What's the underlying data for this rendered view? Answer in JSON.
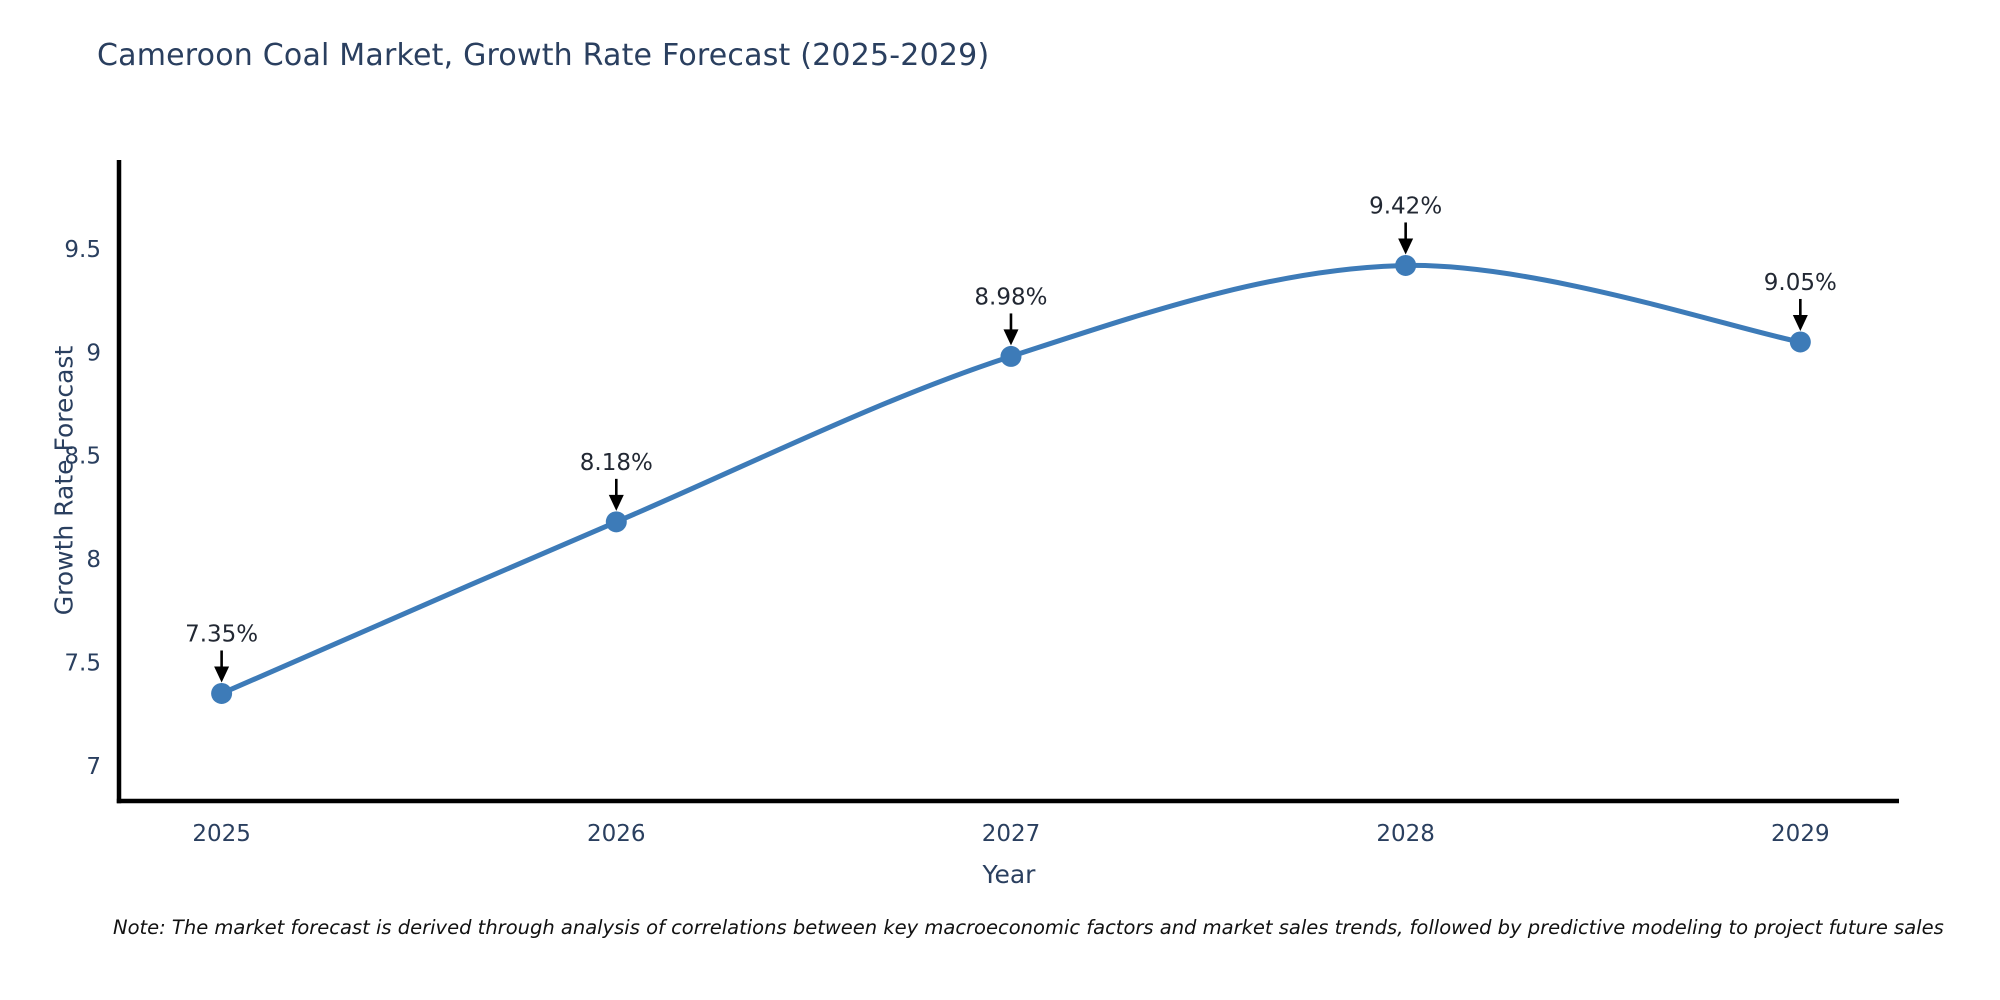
{
  "title": "Cameroon Coal Market, Growth Rate Forecast (2025-2029)",
  "note": "Note: The market forecast is derived through analysis of correlations between key macroeconomic factors and market sales trends, followed by predictive modeling to project future sales",
  "chart_data": {
    "type": "line",
    "title": "Cameroon Coal Market, Growth Rate Forecast (2025-2029)",
    "xlabel": "Year",
    "ylabel": "Growth Rate Forecast",
    "categories": [
      "2025",
      "2026",
      "2027",
      "2028",
      "2029"
    ],
    "x": [
      2025,
      2026,
      2027,
      2028,
      2029
    ],
    "values": [
      7.35,
      8.18,
      8.98,
      9.42,
      9.05
    ],
    "point_labels": [
      "7.35%",
      "8.18%",
      "8.98%",
      "9.42%",
      "9.05%"
    ],
    "yticks": [
      7,
      7.5,
      8,
      8.5,
      9,
      9.5
    ],
    "ytick_labels": [
      "7",
      "7.5",
      "8",
      "8.5",
      "9",
      "9.5"
    ],
    "ylim": [
      6.83,
      9.93
    ],
    "xlim": [
      2024.74,
      2029.25
    ],
    "grid": false,
    "legend": null,
    "smooth": true,
    "line_color": "#3d7bb8",
    "marker_color": "#3d7bb8",
    "annotation_color": "#000000",
    "spine_color": "#000000",
    "text_color": "#2a3f5f"
  }
}
